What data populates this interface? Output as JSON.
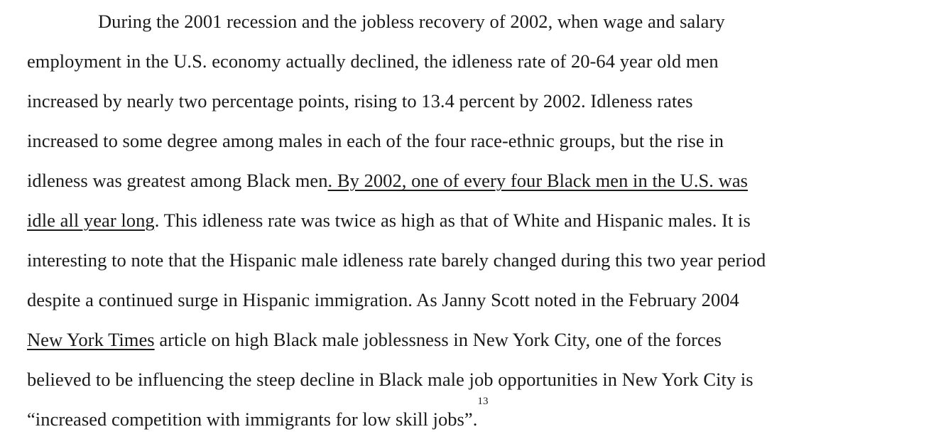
{
  "paragraph": {
    "lines": [
      {
        "text": "During the 2001 recession and the jobless recovery of 2002, when wage and salary"
      },
      {
        "text": "employment in the U.S. economy actually declined, the idleness rate of 20-64 year old men"
      },
      {
        "text": "increased by nearly two percentage points, rising to 13.4 percent by 2002.  Idleness rates"
      },
      {
        "text": "increased to some degree among males in each of the four race-ethnic groups, but the rise in"
      },
      {
        "text_plain": "idleness was greatest among Black men",
        "text_underlined": ".  By 2002, one of every four Black men in the U.S. was"
      },
      {
        "text_underlined": "idle all year long",
        "text_plain": ".  This idleness rate was twice as high as that of White and Hispanic males.  It is"
      },
      {
        "text": "interesting to note that the Hispanic male idleness rate barely changed during this two year period"
      },
      {
        "text": "despite a continued surge in Hispanic immigration.  As Janny Scott noted in the February 2004"
      },
      {
        "text_underlined": "New York Times",
        "text_plain": " article on high Black male joblessness in New York City, one of the forces"
      },
      {
        "text": "believed to be influencing the steep decline in Black male job opportunities in New York City is"
      },
      {
        "text": "“increased competition with immigrants for low skill jobs”.",
        "footnote_marker": "13"
      }
    ]
  }
}
